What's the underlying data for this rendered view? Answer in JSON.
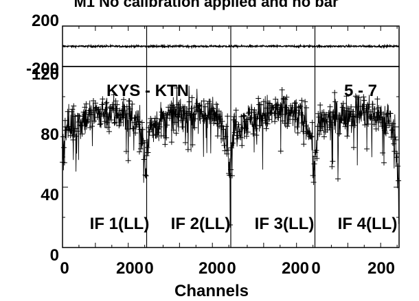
{
  "chart_data": {
    "type": "scatter",
    "title_fragment": "M1  No calibration applied and no bar",
    "baseline": "KYS - KTN",
    "baseline_suffix": "5 - 7",
    "xlabel": "Channels",
    "panels": [
      {
        "label": "IF 1(LL)",
        "x_ticks": [
          "0",
          "200"
        ]
      },
      {
        "label": "IF 2(LL)",
        "x_ticks": [
          "0",
          "200"
        ]
      },
      {
        "label": "IF 3(LL)",
        "x_ticks": [
          "0",
          "200"
        ]
      },
      {
        "label": "IF 4(LL)",
        "x_ticks": [
          "0",
          "200"
        ]
      }
    ],
    "xlim": [
      0,
      256
    ],
    "phase_panel": {
      "y_ticks": [
        "200",
        "-200"
      ],
      "ylim": [
        -200,
        200
      ],
      "typical_value": 0
    },
    "amplitude_panel": {
      "y_ticks": [
        "0",
        "40",
        "80",
        "120"
      ],
      "ylim": [
        0,
        120
      ],
      "profile": [
        {
          "channel": 2,
          "value": 62
        },
        {
          "channel": 10,
          "value": 80
        },
        {
          "channel": 30,
          "value": 82
        },
        {
          "channel": 70,
          "value": 86
        },
        {
          "channel": 130,
          "value": 90
        },
        {
          "channel": 190,
          "value": 88
        },
        {
          "channel": 230,
          "value": 84
        },
        {
          "channel": 246,
          "value": 72
        },
        {
          "channel": 254,
          "value": 45
        }
      ]
    }
  }
}
